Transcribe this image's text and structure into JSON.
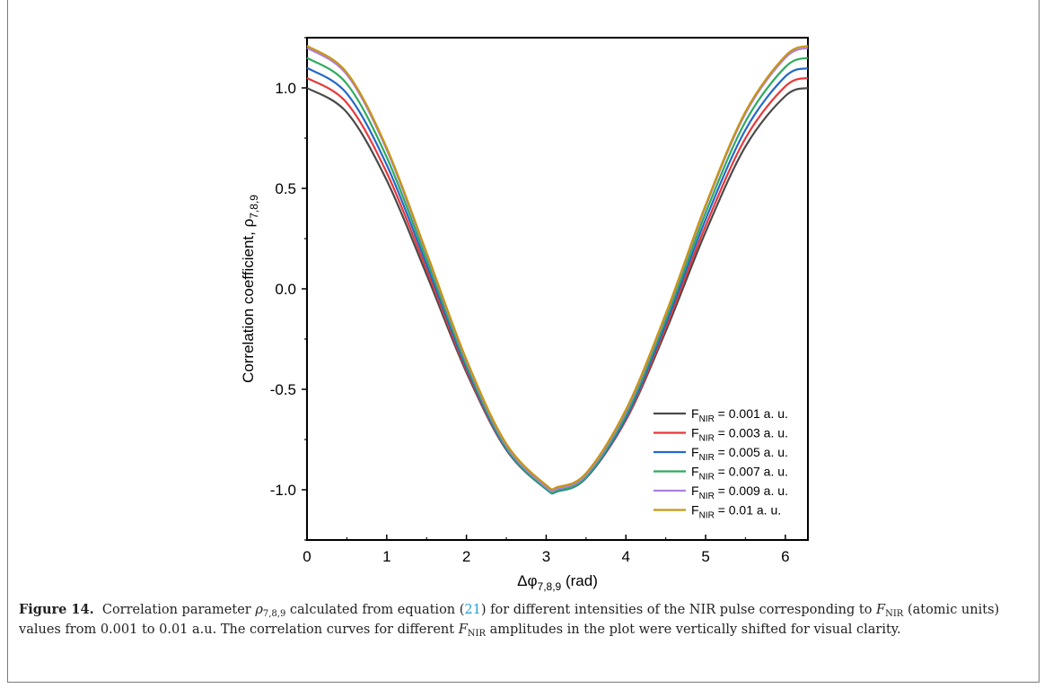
{
  "caption": {
    "figure_label": "Figure 14.",
    "part1": "Correlation parameter ",
    "rho": "ρ",
    "rho_sub": "7,8,9",
    "part2": " calculated from equation (",
    "eq_ref": "21",
    "part3": ") for different intensities of the NIR pulse corresponding to ",
    "F": "F",
    "F_sub": "NIR",
    "part4": " (atomic units) values from 0.001 to 0.01 a.u. The correlation curves for different ",
    "part5": " amplitudes in the plot were vertically shifted for visual clarity."
  },
  "chart_data": {
    "type": "line",
    "xlabel": "Δφ",
    "xlabel_sub": "7,8,9",
    "xlabel_unit": " (rad)",
    "ylabel": "Correlation coefficient, ρ",
    "ylabel_sub": "7,8,9",
    "xlim": [
      0,
      6.283
    ],
    "ylim": [
      -1.25,
      1.25
    ],
    "xticks": [
      0,
      1,
      2,
      3,
      4,
      5,
      6
    ],
    "yticks": [
      -1.0,
      -0.5,
      0.0,
      0.5,
      1.0
    ],
    "ytick_labels": [
      "-1.0",
      "-0.5",
      "0.0",
      "0.5",
      "1.0"
    ],
    "legend_position": "bottom-right",
    "x": [
      0,
      0.5,
      1,
      1.5,
      2,
      2.5,
      3,
      3.14159,
      3.5,
      4,
      4.5,
      5,
      5.5,
      6,
      6.283
    ],
    "series": [
      {
        "label_pre": "F",
        "label_sub": "NIR",
        "label_post": " = 0.001 a. u.",
        "color": "#4a4a4a",
        "values": [
          1.0,
          0.878,
          0.54,
          0.071,
          -0.416,
          -0.801,
          -0.99,
          -1.0,
          -0.937,
          -0.654,
          -0.211,
          0.284,
          0.709,
          0.96,
          1.0
        ]
      },
      {
        "label_pre": "F",
        "label_sub": "NIR",
        "label_post": " = 0.003 a. u.",
        "color": "#e8383a",
        "values": [
          1.05,
          0.925,
          0.578,
          0.095,
          -0.405,
          -0.801,
          -0.996,
          -1.006,
          -0.942,
          -0.651,
          -0.194,
          0.314,
          0.75,
          1.008,
          1.05
        ]
      },
      {
        "label_pre": "F",
        "label_sub": "NIR",
        "label_post": " = 0.005 a. u.",
        "color": "#2468c8",
        "values": [
          1.1,
          0.972,
          0.617,
          0.12,
          -0.393,
          -0.798,
          -0.997,
          -1.008,
          -0.942,
          -0.643,
          -0.175,
          0.346,
          0.792,
          1.057,
          1.098
        ]
      },
      {
        "label_pre": "F",
        "label_sub": "NIR",
        "label_post": " = 0.007 a. u.",
        "color": "#2eab5c",
        "values": [
          1.15,
          1.02,
          0.655,
          0.146,
          -0.378,
          -0.791,
          -0.994,
          -1.004,
          -0.937,
          -0.629,
          -0.154,
          0.378,
          0.833,
          1.104,
          1.15
        ]
      },
      {
        "label_pre": "F",
        "label_sub": "NIR",
        "label_post": " = 0.009 a. u.",
        "color": "#ad7fe0",
        "values": [
          1.2,
          1.066,
          0.692,
          0.172,
          -0.361,
          -0.78,
          -0.986,
          -0.995,
          -0.927,
          -0.612,
          -0.132,
          0.41,
          0.873,
          1.15,
          1.2
        ]
      },
      {
        "label_pre": "F",
        "label_sub": "NIR",
        "label_post": " = 0.01 a. u.",
        "color": "#c8960f",
        "values": [
          1.21,
          1.076,
          0.702,
          0.181,
          -0.352,
          -0.771,
          -0.977,
          -0.986,
          -0.918,
          -0.602,
          -0.124,
          0.418,
          0.882,
          1.16,
          1.21
        ]
      }
    ]
  }
}
